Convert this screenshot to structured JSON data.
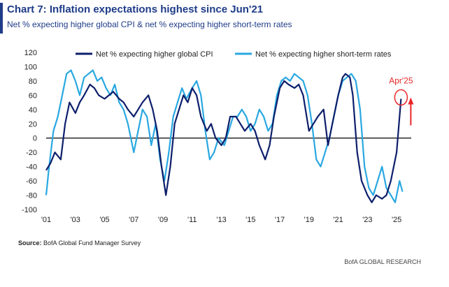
{
  "header": {
    "title": "Chart 7: Inflation expectations highest since Jun'21",
    "subtitle": "Net % expecting higher global CPI & net % expecting higher short-term rates"
  },
  "footer": {
    "source_label": "Source:",
    "source_text": "BofA Global Fund Manager Survey",
    "credit": "BofA GLOBAL RESEARCH"
  },
  "colors": {
    "cpi": "#0d1f6b",
    "rates": "#29a8e0",
    "annotation": "#e8262a",
    "axis": "#000000",
    "title": "#1f3c88"
  },
  "annotation": {
    "label": "Apr'25",
    "x": 2025.3,
    "y": 55
  },
  "chart_data": {
    "type": "line",
    "title": "Chart 7: Inflation expectations highest since Jun'21",
    "subtitle": "Net % expecting higher global CPI & net % expecting higher short-term rates",
    "xlim": [
      2001,
      2026
    ],
    "ylim": [
      -100,
      120
    ],
    "x_ticks": [
      2001,
      2003,
      2005,
      2007,
      2009,
      2011,
      2013,
      2015,
      2017,
      2019,
      2021,
      2023,
      2025
    ],
    "x_tick_labels": [
      "'01",
      "'03",
      "'05",
      "'07",
      "'09",
      "'11",
      "'13",
      "'15",
      "'17",
      "'19",
      "'21",
      "'23",
      "'25"
    ],
    "y_ticks": [
      -100,
      -80,
      -60,
      -40,
      -20,
      0,
      20,
      40,
      60,
      80,
      100,
      120
    ],
    "legend_position": "top",
    "series": [
      {
        "name": "Net % expecting higher global CPI",
        "x": [
          2001.0,
          2001.3,
          2001.6,
          2002.0,
          2002.3,
          2002.6,
          2003.0,
          2003.3,
          2003.6,
          2004.0,
          2004.3,
          2004.6,
          2005.0,
          2005.3,
          2005.6,
          2006.0,
          2006.3,
          2006.6,
          2007.0,
          2007.3,
          2007.6,
          2008.0,
          2008.3,
          2008.6,
          2008.9,
          2009.2,
          2009.5,
          2009.8,
          2010.1,
          2010.4,
          2010.7,
          2011.0,
          2011.3,
          2011.6,
          2012.0,
          2012.3,
          2012.6,
          2013.0,
          2013.3,
          2013.6,
          2014.0,
          2014.3,
          2014.6,
          2015.0,
          2015.3,
          2015.6,
          2016.0,
          2016.3,
          2016.6,
          2017.0,
          2017.3,
          2017.6,
          2018.0,
          2018.3,
          2018.6,
          2019.0,
          2019.3,
          2019.6,
          2020.0,
          2020.3,
          2020.6,
          2021.0,
          2021.3,
          2021.5,
          2021.8,
          2022.0,
          2022.3,
          2022.6,
          2023.0,
          2023.3,
          2023.6,
          2024.0,
          2024.3,
          2024.6,
          2025.0,
          2025.3
        ],
        "y": [
          -45,
          -35,
          -20,
          -30,
          20,
          50,
          35,
          50,
          60,
          75,
          70,
          60,
          55,
          60,
          65,
          55,
          50,
          40,
          30,
          40,
          50,
          60,
          40,
          10,
          -40,
          -80,
          -40,
          20,
          40,
          60,
          50,
          70,
          60,
          30,
          10,
          20,
          0,
          -10,
          0,
          30,
          30,
          20,
          10,
          20,
          10,
          -10,
          -30,
          -10,
          30,
          70,
          80,
          75,
          70,
          75,
          60,
          10,
          20,
          30,
          40,
          -10,
          20,
          60,
          85,
          90,
          85,
          60,
          -20,
          -60,
          -80,
          -90,
          -80,
          -85,
          -80,
          -60,
          -20,
          55
        ]
      },
      {
        "name": "Net % expecting higher short-term rates",
        "x": [
          2001.0,
          2001.2,
          2001.5,
          2001.8,
          2002.1,
          2002.4,
          2002.7,
          2003.0,
          2003.3,
          2003.6,
          2003.9,
          2004.2,
          2004.5,
          2004.8,
          2005.1,
          2005.4,
          2005.7,
          2006.0,
          2006.3,
          2006.6,
          2007.0,
          2007.3,
          2007.6,
          2007.9,
          2008.2,
          2008.5,
          2008.8,
          2009.1,
          2009.4,
          2009.7,
          2010.0,
          2010.3,
          2010.6,
          2011.0,
          2011.3,
          2011.6,
          2011.9,
          2012.2,
          2012.5,
          2012.8,
          2013.2,
          2013.5,
          2013.8,
          2014.1,
          2014.4,
          2014.7,
          2015.0,
          2015.3,
          2015.6,
          2015.9,
          2016.2,
          2016.5,
          2016.8,
          2017.1,
          2017.4,
          2017.7,
          2018.0,
          2018.3,
          2018.6,
          2018.9,
          2019.2,
          2019.5,
          2019.8,
          2020.1,
          2020.4,
          2020.7,
          2021.0,
          2021.3,
          2021.6,
          2021.9,
          2022.2,
          2022.5,
          2022.8,
          2023.1,
          2023.4,
          2023.7,
          2024.0,
          2024.3,
          2024.6,
          2024.9,
          2025.2,
          2025.4
        ],
        "y": [
          -80,
          -40,
          10,
          30,
          60,
          90,
          95,
          80,
          60,
          85,
          90,
          95,
          80,
          85,
          70,
          60,
          75,
          50,
          40,
          20,
          -20,
          10,
          40,
          30,
          -10,
          20,
          -30,
          -60,
          -20,
          30,
          50,
          70,
          55,
          70,
          80,
          60,
          10,
          -30,
          -20,
          0,
          -10,
          10,
          30,
          30,
          40,
          30,
          10,
          20,
          40,
          30,
          10,
          20,
          60,
          80,
          85,
          80,
          90,
          85,
          80,
          60,
          20,
          -30,
          -40,
          -20,
          0,
          30,
          60,
          80,
          85,
          90,
          80,
          40,
          -40,
          -70,
          -80,
          -60,
          -40,
          -70,
          -80,
          -90,
          -60,
          -75
        ]
      }
    ]
  }
}
